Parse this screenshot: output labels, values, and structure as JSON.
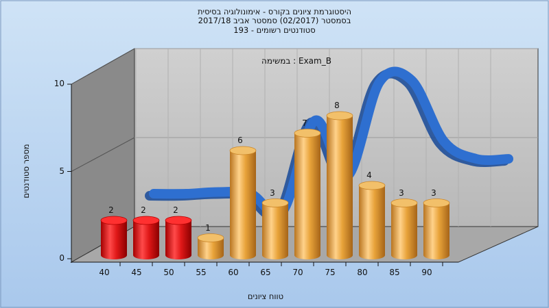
{
  "colors": {
    "background_top": "#cfe3f6",
    "background_bottom": "#a9c8ec",
    "failing_bar": "#e01818",
    "passing_bar": "#e8a33a",
    "curve": "#2e6fd0",
    "back_wall": "#c3c3c3",
    "side_wall": "#8a8a8a",
    "floor": "#a8a8a8"
  },
  "chart_data": {
    "type": "bar",
    "title_lines": [
      "היסטוגרמת ציונים בקורס - אימונולוגיה בסיסית",
      "בסמסטר  (02/2017)  סמסטר אביב 2017/18",
      "סטודנטים רשומים - 193"
    ],
    "plot_label": "במשימה : Exam_B",
    "xlabel": "טווח ציונים",
    "ylabel": "מספר סטודנטים",
    "categories": [
      "40",
      "45",
      "50",
      "55",
      "60",
      "65",
      "70",
      "75",
      "80",
      "85",
      "90"
    ],
    "values": [
      2,
      2,
      2,
      1,
      6,
      3,
      7,
      8,
      4,
      3,
      3
    ],
    "bar_colors": [
      "red",
      "red",
      "red",
      "orange",
      "orange",
      "orange",
      "orange",
      "orange",
      "orange",
      "orange",
      "orange"
    ],
    "yticks": [
      0,
      5,
      10
    ],
    "ylim": [
      0,
      10
    ],
    "grid": true,
    "curve": {
      "type": "line",
      "x": [
        40,
        45,
        50,
        55,
        60,
        65,
        70,
        75,
        80,
        85,
        90,
        95
      ],
      "y": [
        2.0,
        2.0,
        2.1,
        2.0,
        1.0,
        6.2,
        3.0,
        8.4,
        8.5,
        5.0,
        4.0,
        4.0
      ]
    }
  }
}
